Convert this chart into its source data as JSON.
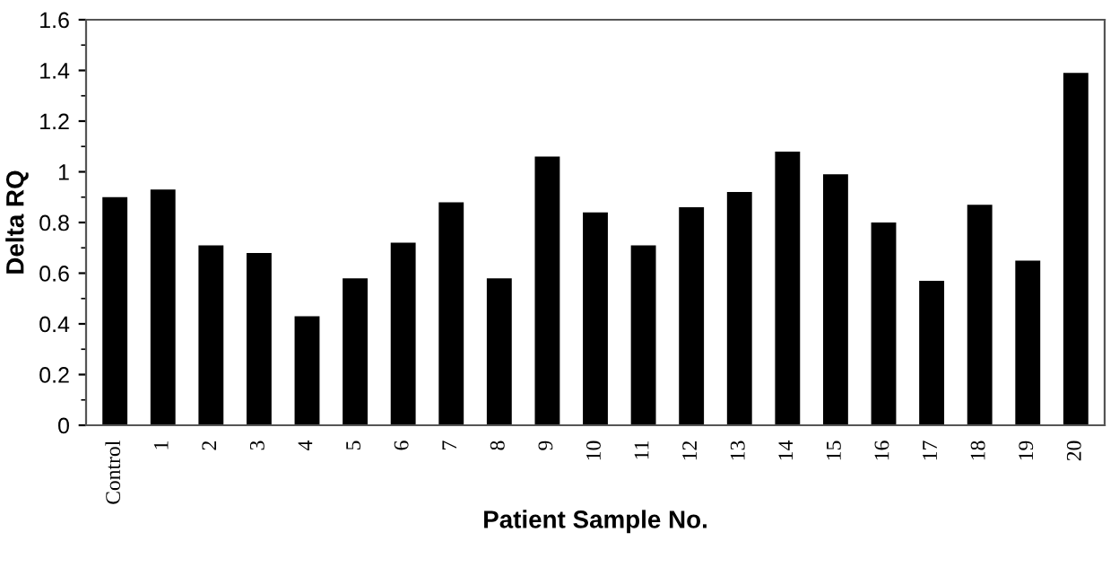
{
  "chart_data": {
    "type": "bar",
    "xlabel": "Patient Sample No.",
    "ylabel": "Delta RQ",
    "categories": [
      "Control",
      "1",
      "2",
      "3",
      "4",
      "5",
      "6",
      "7",
      "8",
      "9",
      "10",
      "11",
      "12",
      "13",
      "14",
      "15",
      "16",
      "17",
      "18",
      "19",
      "20"
    ],
    "values": [
      0.9,
      0.93,
      0.71,
      0.68,
      0.43,
      0.58,
      0.72,
      0.88,
      0.58,
      1.06,
      0.84,
      0.71,
      0.86,
      0.92,
      1.08,
      0.99,
      0.8,
      0.57,
      0.87,
      0.65,
      1.39
    ],
    "color": "#000000",
    "ylim": [
      0,
      1.6
    ],
    "yticks": [
      0,
      0.2,
      0.4,
      0.6,
      0.8,
      1,
      1.2,
      1.4,
      1.6
    ],
    "grid": false,
    "legend": false
  }
}
